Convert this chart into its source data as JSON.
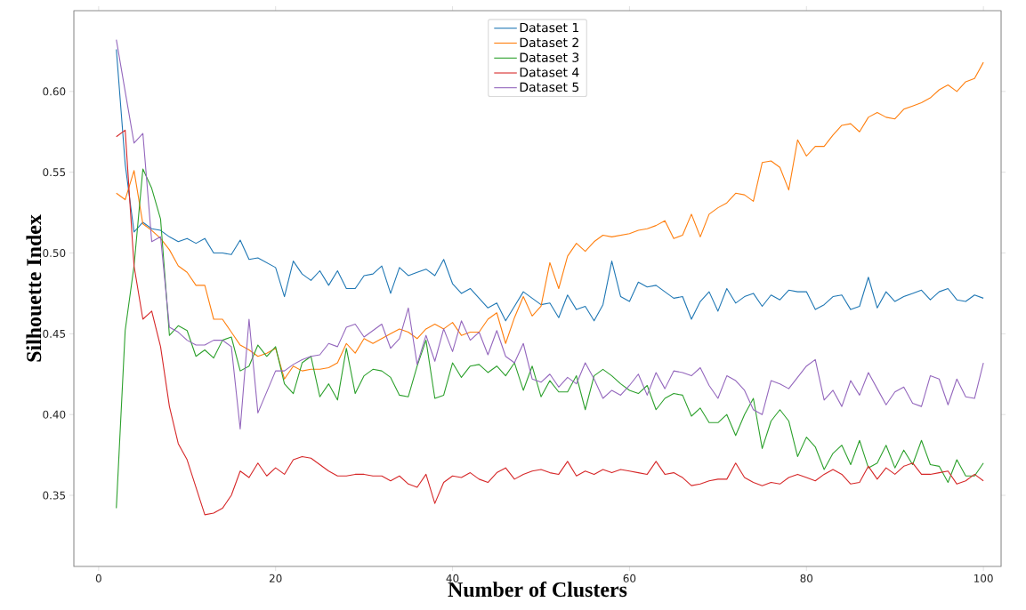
{
  "chart_data": {
    "type": "line",
    "xlabel": "Number of Clusters",
    "ylabel": "Silhouette Index",
    "x": [
      2,
      3,
      4,
      5,
      6,
      7,
      8,
      9,
      10,
      11,
      12,
      13,
      14,
      15,
      16,
      17,
      18,
      19,
      20,
      21,
      22,
      23,
      24,
      25,
      26,
      27,
      28,
      29,
      30,
      31,
      32,
      33,
      34,
      35,
      36,
      37,
      38,
      39,
      40,
      41,
      42,
      43,
      44,
      45,
      46,
      47,
      48,
      49,
      50,
      51,
      52,
      53,
      54,
      55,
      56,
      57,
      58,
      59,
      60,
      61,
      62,
      63,
      64,
      65,
      66,
      67,
      68,
      69,
      70,
      71,
      72,
      73,
      74,
      75,
      76,
      77,
      78,
      79,
      80,
      81,
      82,
      83,
      84,
      85,
      86,
      87,
      88,
      89,
      90,
      91,
      92,
      93,
      94,
      95,
      96,
      97,
      98,
      99,
      100
    ],
    "series": [
      {
        "name": "Dataset 1",
        "color": "#1f77b4",
        "values": [
          0.626,
          0.555,
          0.513,
          0.519,
          0.515,
          0.514,
          0.51,
          0.507,
          0.509,
          0.506,
          0.509,
          0.5,
          0.5,
          0.499,
          0.508,
          0.496,
          0.497,
          0.494,
          0.491,
          0.473,
          0.495,
          0.487,
          0.483,
          0.489,
          0.48,
          0.489,
          0.478,
          0.478,
          0.486,
          0.487,
          0.492,
          0.475,
          0.491,
          0.486,
          0.488,
          0.49,
          0.486,
          0.496,
          0.481,
          0.475,
          0.478,
          0.472,
          0.466,
          0.469,
          0.458,
          0.467,
          0.476,
          0.472,
          0.468,
          0.469,
          0.46,
          0.474,
          0.465,
          0.467,
          0.458,
          0.468,
          0.495,
          0.473,
          0.47,
          0.482,
          0.479,
          0.48,
          0.476,
          0.472,
          0.473,
          0.459,
          0.47,
          0.476,
          0.464,
          0.478,
          0.469,
          0.473,
          0.475,
          0.467,
          0.474,
          0.471,
          0.477,
          0.476,
          0.476,
          0.465,
          0.468,
          0.473,
          0.474,
          0.465,
          0.467,
          0.485,
          0.466,
          0.476,
          0.47,
          0.473,
          0.475,
          0.477,
          0.471,
          0.476,
          0.478,
          0.471,
          0.47,
          0.474,
          0.472
        ]
      },
      {
        "name": "Dataset 2",
        "color": "#ff7f0e",
        "values": [
          0.537,
          0.533,
          0.551,
          0.518,
          0.514,
          0.509,
          0.502,
          0.492,
          0.488,
          0.48,
          0.48,
          0.459,
          0.459,
          0.451,
          0.443,
          0.44,
          0.436,
          0.438,
          0.441,
          0.422,
          0.43,
          0.427,
          0.428,
          0.428,
          0.429,
          0.432,
          0.444,
          0.438,
          0.447,
          0.444,
          0.447,
          0.45,
          0.453,
          0.451,
          0.447,
          0.453,
          0.456,
          0.453,
          0.457,
          0.449,
          0.451,
          0.451,
          0.459,
          0.463,
          0.444,
          0.46,
          0.473,
          0.461,
          0.467,
          0.494,
          0.478,
          0.498,
          0.506,
          0.501,
          0.507,
          0.511,
          0.51,
          0.511,
          0.512,
          0.514,
          0.515,
          0.517,
          0.52,
          0.509,
          0.511,
          0.524,
          0.51,
          0.524,
          0.528,
          0.531,
          0.537,
          0.536,
          0.532,
          0.556,
          0.557,
          0.553,
          0.539,
          0.57,
          0.56,
          0.566,
          0.566,
          0.573,
          0.579,
          0.58,
          0.575,
          0.584,
          0.587,
          0.584,
          0.583,
          0.589,
          0.591,
          0.593,
          0.596,
          0.601,
          0.604,
          0.6,
          0.606,
          0.608,
          0.618
        ]
      },
      {
        "name": "Dataset 3",
        "color": "#2ca02c",
        "values": [
          0.342,
          0.452,
          0.492,
          0.552,
          0.54,
          0.521,
          0.449,
          0.455,
          0.452,
          0.436,
          0.44,
          0.435,
          0.446,
          0.448,
          0.427,
          0.43,
          0.443,
          0.436,
          0.442,
          0.419,
          0.413,
          0.432,
          0.436,
          0.411,
          0.419,
          0.409,
          0.441,
          0.413,
          0.424,
          0.428,
          0.427,
          0.423,
          0.412,
          0.411,
          0.43,
          0.446,
          0.41,
          0.412,
          0.432,
          0.423,
          0.43,
          0.431,
          0.426,
          0.43,
          0.424,
          0.432,
          0.415,
          0.43,
          0.411,
          0.421,
          0.414,
          0.414,
          0.424,
          0.403,
          0.424,
          0.428,
          0.424,
          0.419,
          0.415,
          0.413,
          0.418,
          0.403,
          0.41,
          0.413,
          0.412,
          0.399,
          0.404,
          0.395,
          0.395,
          0.4,
          0.387,
          0.4,
          0.41,
          0.379,
          0.396,
          0.403,
          0.396,
          0.374,
          0.386,
          0.38,
          0.366,
          0.376,
          0.381,
          0.369,
          0.384,
          0.367,
          0.37,
          0.381,
          0.367,
          0.378,
          0.369,
          0.384,
          0.369,
          0.368,
          0.358,
          0.372,
          0.362,
          0.362,
          0.37
        ]
      },
      {
        "name": "Dataset 4",
        "color": "#d62728",
        "values": [
          0.572,
          0.576,
          0.492,
          0.459,
          0.464,
          0.442,
          0.405,
          0.382,
          0.372,
          0.355,
          0.338,
          0.339,
          0.342,
          0.35,
          0.365,
          0.361,
          0.37,
          0.362,
          0.367,
          0.363,
          0.372,
          0.374,
          0.373,
          0.369,
          0.365,
          0.362,
          0.362,
          0.363,
          0.363,
          0.362,
          0.362,
          0.359,
          0.362,
          0.357,
          0.355,
          0.363,
          0.345,
          0.358,
          0.362,
          0.361,
          0.364,
          0.36,
          0.358,
          0.364,
          0.367,
          0.36,
          0.363,
          0.365,
          0.366,
          0.364,
          0.363,
          0.371,
          0.362,
          0.365,
          0.363,
          0.366,
          0.364,
          0.366,
          0.365,
          0.364,
          0.363,
          0.371,
          0.363,
          0.364,
          0.361,
          0.356,
          0.357,
          0.359,
          0.36,
          0.36,
          0.37,
          0.361,
          0.358,
          0.356,
          0.358,
          0.357,
          0.361,
          0.363,
          0.361,
          0.359,
          0.363,
          0.366,
          0.363,
          0.357,
          0.358,
          0.368,
          0.36,
          0.367,
          0.363,
          0.368,
          0.37,
          0.363,
          0.363,
          0.364,
          0.365,
          0.357,
          0.359,
          0.363,
          0.359
        ]
      },
      {
        "name": "Dataset 5",
        "color": "#9467bd",
        "values": [
          0.632,
          0.6,
          0.568,
          0.574,
          0.507,
          0.51,
          0.454,
          0.451,
          0.446,
          0.443,
          0.443,
          0.446,
          0.446,
          0.442,
          0.391,
          0.459,
          0.401,
          0.414,
          0.427,
          0.427,
          0.431,
          0.434,
          0.436,
          0.437,
          0.444,
          0.442,
          0.454,
          0.456,
          0.448,
          0.452,
          0.456,
          0.441,
          0.447,
          0.466,
          0.431,
          0.449,
          0.433,
          0.453,
          0.439,
          0.458,
          0.446,
          0.451,
          0.437,
          0.452,
          0.436,
          0.432,
          0.444,
          0.422,
          0.42,
          0.425,
          0.417,
          0.423,
          0.419,
          0.432,
          0.422,
          0.41,
          0.415,
          0.412,
          0.418,
          0.425,
          0.412,
          0.426,
          0.416,
          0.427,
          0.426,
          0.424,
          0.429,
          0.418,
          0.41,
          0.424,
          0.421,
          0.415,
          0.403,
          0.4,
          0.421,
          0.419,
          0.416,
          0.423,
          0.43,
          0.434,
          0.409,
          0.415,
          0.405,
          0.421,
          0.412,
          0.426,
          0.416,
          0.406,
          0.414,
          0.417,
          0.407,
          0.405,
          0.424,
          0.422,
          0.406,
          0.422,
          0.411,
          0.41,
          0.432
        ]
      }
    ],
    "xlim": [
      -2.8,
      102
    ],
    "ylim": [
      0.306,
      0.65
    ],
    "xticks": [
      0,
      20,
      40,
      60,
      80,
      100
    ],
    "yticks": [
      {
        "value": 0.35,
        "label": "0.35"
      },
      {
        "value": 0.4,
        "label": "0.40"
      },
      {
        "value": 0.45,
        "label": "0.45"
      },
      {
        "value": 0.5,
        "label": "0.50"
      },
      {
        "value": 0.55,
        "label": "0.55"
      },
      {
        "value": 0.6,
        "label": "0.60"
      }
    ],
    "legend": "top",
    "grid": false,
    "marker": "none",
    "line_style": "solid"
  }
}
